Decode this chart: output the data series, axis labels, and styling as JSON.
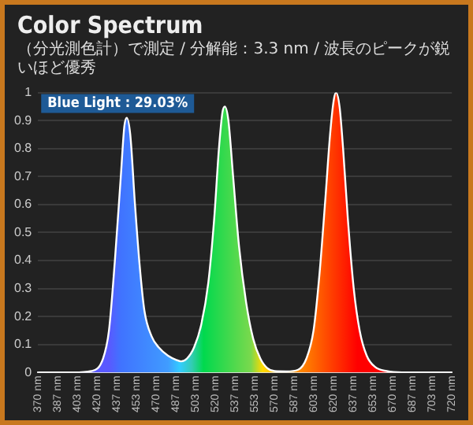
{
  "chart_data": {
    "type": "area",
    "title": "Color Spectrum",
    "subtitle": "（分光測色計）で測定 / 分解能：3.3 nm / 波長のピークが鋭いほど優秀",
    "annotations": [
      "Blue Light : 29.03%"
    ],
    "x": [
      370,
      400,
      415,
      425,
      430,
      435,
      440,
      443,
      445,
      448,
      452,
      456,
      460,
      466,
      472,
      480,
      487,
      491,
      496,
      502,
      508,
      514,
      519,
      523,
      526,
      528,
      531,
      535,
      540,
      546,
      552,
      558,
      564,
      570,
      580,
      590,
      597,
      603,
      608,
      613,
      617,
      620,
      622,
      625,
      628,
      632,
      637,
      642,
      648,
      655,
      665,
      680,
      720
    ],
    "series": [
      {
        "color": "#ffffff",
        "values": [
          0,
          0,
          0.005,
          0.05,
          0.15,
          0.4,
          0.7,
          0.88,
          0.91,
          0.85,
          0.6,
          0.38,
          0.22,
          0.13,
          0.09,
          0.06,
          0.045,
          0.04,
          0.05,
          0.09,
          0.17,
          0.32,
          0.55,
          0.8,
          0.93,
          0.95,
          0.9,
          0.7,
          0.45,
          0.25,
          0.12,
          0.05,
          0.015,
          0.005,
          0.004,
          0.01,
          0.05,
          0.15,
          0.35,
          0.62,
          0.85,
          0.97,
          1,
          0.95,
          0.8,
          0.55,
          0.3,
          0.15,
          0.06,
          0.02,
          0.005,
          0,
          0
        ]
      }
    ],
    "xlim": [
      370,
      720
    ],
    "xticks": [
      {
        "value": 370,
        "label": "370 nm"
      },
      {
        "value": 386.7,
        "label": "387 nm"
      },
      {
        "value": 403.3,
        "label": "403 nm"
      },
      {
        "value": 420,
        "label": "420 nm"
      },
      {
        "value": 436.7,
        "label": "437 nm"
      },
      {
        "value": 453.3,
        "label": "453 nm"
      },
      {
        "value": 470,
        "label": "470 nm"
      },
      {
        "value": 486.7,
        "label": "487 nm"
      },
      {
        "value": 503.3,
        "label": "503 nm"
      },
      {
        "value": 520,
        "label": "520 nm"
      },
      {
        "value": 536.7,
        "label": "537 nm"
      },
      {
        "value": 553.3,
        "label": "553 nm"
      },
      {
        "value": 570,
        "label": "570 nm"
      },
      {
        "value": 586.7,
        "label": "587 nm"
      },
      {
        "value": 603.3,
        "label": "603 nm"
      },
      {
        "value": 620,
        "label": "620 nm"
      },
      {
        "value": 636.7,
        "label": "637 nm"
      },
      {
        "value": 653.3,
        "label": "653 nm"
      },
      {
        "value": 670,
        "label": "670 nm"
      },
      {
        "value": 686.7,
        "label": "687 nm"
      },
      {
        "value": 703.3,
        "label": "703 nm"
      },
      {
        "value": 720,
        "label": "720 nm"
      }
    ],
    "ylim": [
      0,
      1
    ],
    "yticks": [
      0,
      0.1,
      0.2,
      0.3,
      0.4,
      0.5,
      0.6,
      0.7,
      0.8,
      0.9,
      1
    ],
    "grid": "y"
  }
}
